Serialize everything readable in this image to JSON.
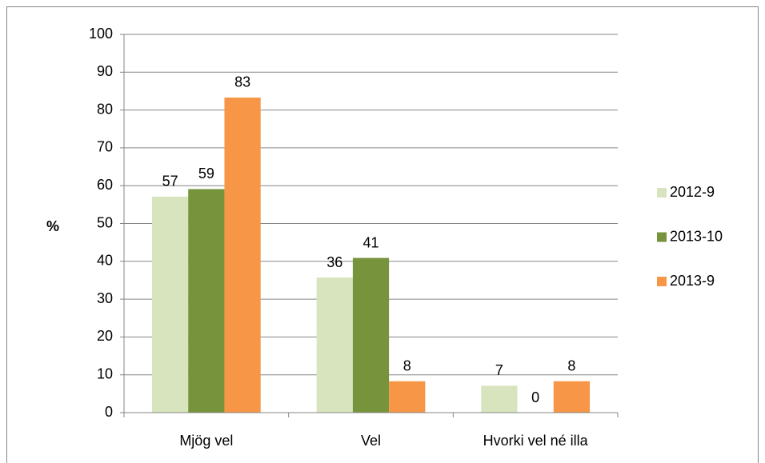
{
  "chart_data": {
    "type": "bar",
    "categories": [
      "Mjög vel",
      "Vel",
      "Hvorki vel né illa"
    ],
    "series": [
      {
        "name": "2012-9",
        "color": "#d7e4bd",
        "values": [
          57.1,
          35.7,
          7.1
        ],
        "value_labels": [
          "57",
          "36",
          "7"
        ]
      },
      {
        "name": "2013-10",
        "color": "#77933c",
        "values": [
          59.1,
          40.9,
          0
        ],
        "value_labels": [
          "59",
          "41",
          "0"
        ]
      },
      {
        "name": "2013-9",
        "color": "#f79646",
        "values": [
          83.3,
          8.3,
          8.3
        ],
        "value_labels": [
          "83",
          "8",
          "8"
        ]
      }
    ],
    "y_label": "%",
    "ylim": [
      0,
      100
    ],
    "yticks": [
      0,
      10,
      20,
      30,
      40,
      50,
      60,
      70,
      80,
      90,
      100
    ],
    "grid": true,
    "legend": "right"
  }
}
